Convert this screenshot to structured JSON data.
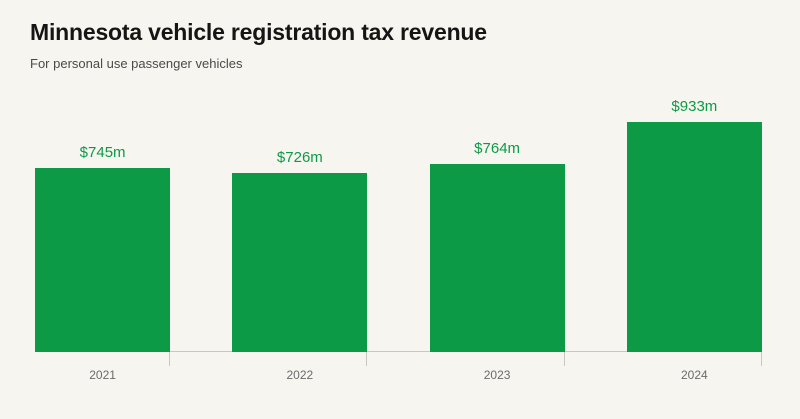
{
  "chart_data": {
    "type": "bar",
    "title": "Minnesota vehicle registration tax revenue",
    "subtitle": "For personal use passenger vehicles",
    "categories": [
      "2021",
      "2022",
      "2023",
      "2024"
    ],
    "values": [
      745,
      726,
      764,
      933
    ],
    "value_labels": [
      "$745m",
      "$726m",
      "$764m",
      "$933m"
    ],
    "xlabel": "",
    "ylabel": "",
    "ylim": [
      0,
      933
    ],
    "grid": false,
    "legend": false,
    "layout": {
      "value_labels_position": "above-bars",
      "x_axis_ticks": "below-baseline"
    },
    "colors": {
      "bar": "#0c9a47",
      "value_label": "#0c9a47",
      "background": "#f7f5ef",
      "axis_line": "#c9c7c0",
      "title_text": "#151515",
      "subtitle_text": "#4a4a4a",
      "tick_label_text": "#6b6b6b"
    }
  }
}
